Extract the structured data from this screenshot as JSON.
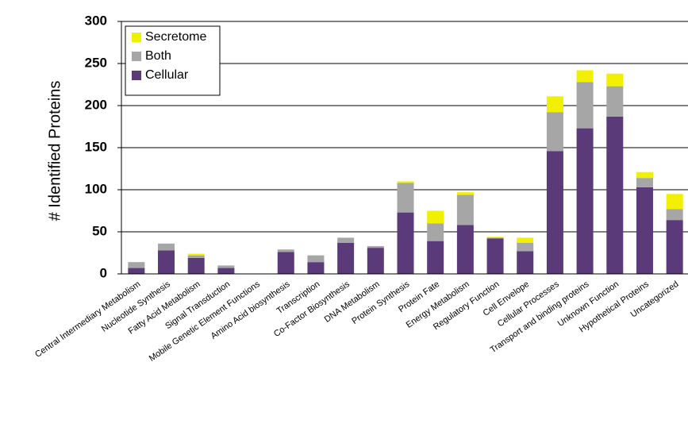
{
  "chart_data": {
    "type": "stacked_bar",
    "y_label": "# Identified Proteins",
    "categories": [
      "Central Intermediary Metabolism",
      "Nucleotide Synthesis",
      "Fatty Acid Metabolism",
      "Signal Transduction",
      "Mobile Genetic Element Functions",
      "Amino Acid biosynthesis",
      "Transcription",
      "Co-Factor Biosynthesis",
      "DNA Metabolism",
      "Protein Synthesis",
      "Protein Fate",
      "Energy Metabolism",
      "Regulatory Function",
      "Cell Envelope",
      "Cellular Processes",
      "Transport and binding proteins",
      "Unknown Function",
      "Hypothetical Proteins",
      "Uncategorized"
    ],
    "series": [
      {
        "name": "Cellular",
        "color": "#5b3a7a",
        "values": [
          7,
          28,
          19,
          7,
          0,
          26,
          14,
          37,
          31,
          73,
          39,
          58,
          42,
          27,
          146,
          173,
          187,
          103,
          64
        ]
      },
      {
        "name": "Both",
        "color": "#a6a6a6",
        "values": [
          7,
          8,
          3,
          3,
          0,
          3,
          8,
          6,
          2,
          35,
          21,
          36,
          1,
          10,
          46,
          55,
          36,
          11,
          13
        ]
      },
      {
        "name": "Secretome",
        "color": "#f0f000",
        "values": [
          0,
          0,
          2,
          0,
          0,
          0,
          0,
          0,
          0,
          2,
          15,
          3,
          1,
          6,
          19,
          14,
          15,
          7,
          18
        ]
      }
    ],
    "ylim": [
      0,
      300
    ],
    "yticks": [
      0,
      50,
      100,
      150,
      200,
      250,
      300
    ],
    "grid": true,
    "legend": "upper left"
  }
}
